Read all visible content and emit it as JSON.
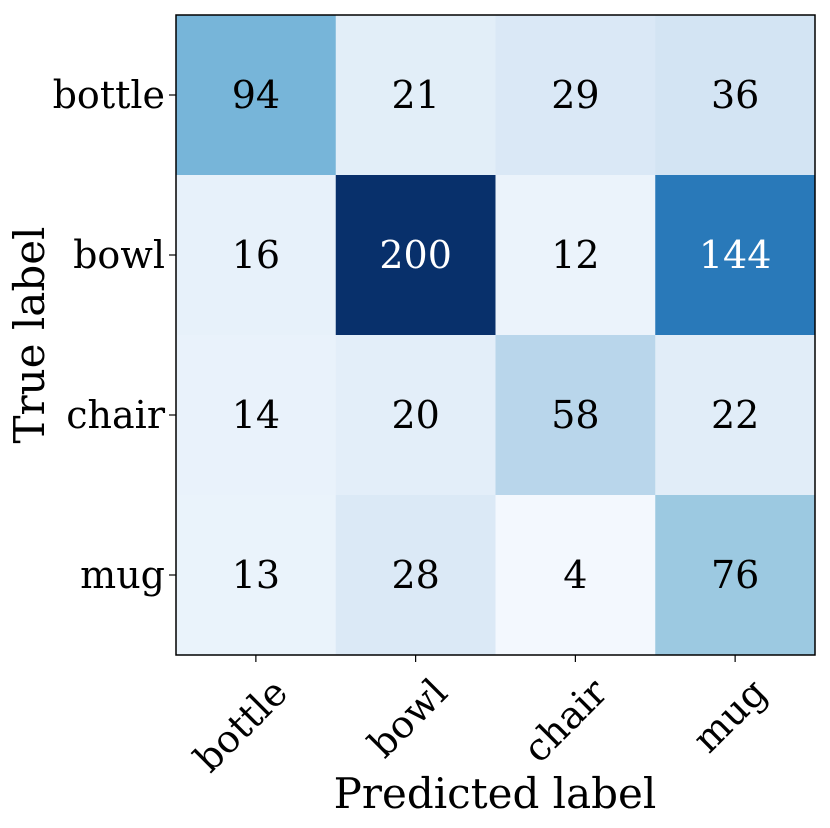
{
  "chart_data": {
    "type": "heatmap",
    "title": "",
    "xlabel": "Predicted label",
    "ylabel": "True label",
    "x_categories": [
      "bottle",
      "bowl",
      "chair",
      "mug"
    ],
    "y_categories": [
      "bottle",
      "bowl",
      "chair",
      "mug"
    ],
    "values": [
      [
        94,
        21,
        29,
        36
      ],
      [
        16,
        200,
        12,
        144
      ],
      [
        14,
        20,
        58,
        22
      ],
      [
        13,
        28,
        4,
        76
      ]
    ],
    "colormap": "Blues",
    "vmin": 0,
    "vmax": 200,
    "colorbar": false,
    "colors": {
      "low": "#f7fbff",
      "high": "#08306b",
      "text_dark": "#000000",
      "text_light": "#ffffff"
    }
  }
}
